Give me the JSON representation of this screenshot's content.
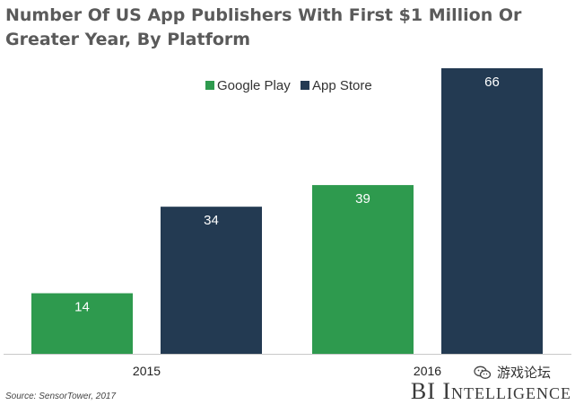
{
  "chart_data": {
    "type": "bar",
    "title": "Number Of US App Publishers With First $1 Million Or Greater Year, By Platform",
    "categories": [
      "2015",
      "2016"
    ],
    "series": [
      {
        "name": "Google Play",
        "values": [
          14,
          39
        ],
        "color": "#2e9a4e"
      },
      {
        "name": "App Store",
        "values": [
          34,
          66
        ],
        "color": "#233a52"
      }
    ],
    "xlabel": "",
    "ylabel": "",
    "ylim": [
      0,
      66
    ],
    "grid": false,
    "legend_position": "top-center"
  },
  "source": "Source: SensorTower, 2017",
  "brand": "BI Intelligence",
  "watermark": {
    "text": "游戏论坛",
    "icon": "wechat-icon"
  }
}
